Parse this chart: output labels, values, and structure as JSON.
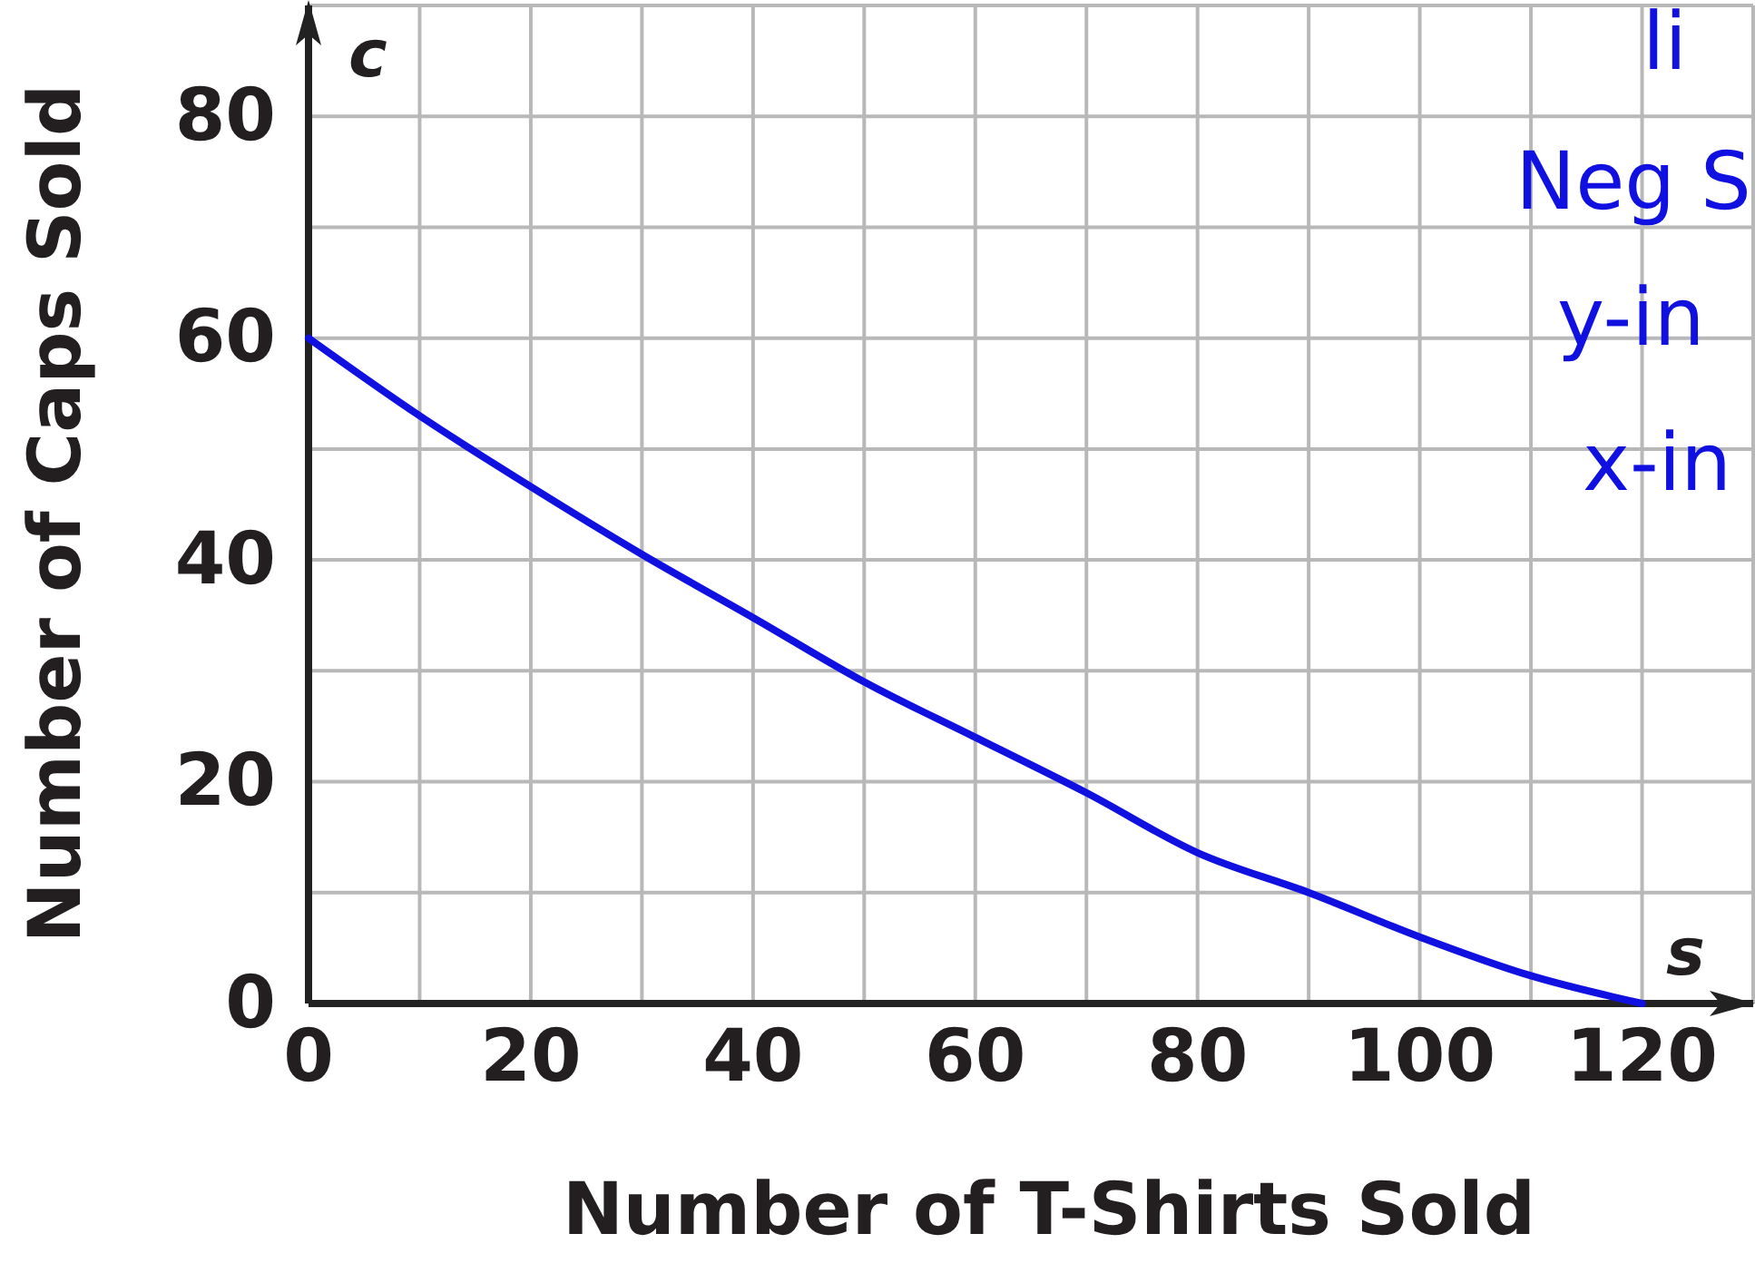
{
  "chart_data": {
    "type": "line",
    "xlabel": "Number of T-Shirts Sold",
    "ylabel": "Number of Caps Sold",
    "x": [
      0,
      10,
      20,
      30,
      40,
      50,
      60,
      70,
      80,
      90,
      100,
      110,
      120
    ],
    "series": [
      {
        "color": "#1010e0",
        "values": [
          60,
          53,
          46.6,
          40.5,
          34.8,
          29,
          24,
          19,
          13.6,
          10,
          6,
          2.5,
          0
        ]
      }
    ],
    "xlim": [
      0,
      130
    ],
    "ylim": [
      0,
      90
    ],
    "xticks": [
      0,
      {
        "value": 10,
        "label": null
      },
      20,
      {
        "value": 30,
        "label": null
      },
      40,
      {
        "value": 50,
        "label": null
      },
      60,
      {
        "value": 70,
        "label": null
      },
      80,
      {
        "value": 90,
        "label": null
      },
      100,
      {
        "value": 110,
        "label": null
      },
      120,
      {
        "value": 130,
        "label": null
      }
    ],
    "yticks": [
      0,
      {
        "value": 10,
        "label": null
      },
      20,
      {
        "value": 30,
        "label": null
      },
      40,
      {
        "value": 50,
        "label": null
      },
      60,
      {
        "value": 70,
        "label": null
      },
      80,
      {
        "value": 90,
        "label": null
      }
    ],
    "grid": true,
    "marker": "none",
    "line_style": "solid",
    "annotations": [
      "c",
      "s",
      "li",
      "Neg S",
      "y-in",
      "x-in"
    ]
  }
}
